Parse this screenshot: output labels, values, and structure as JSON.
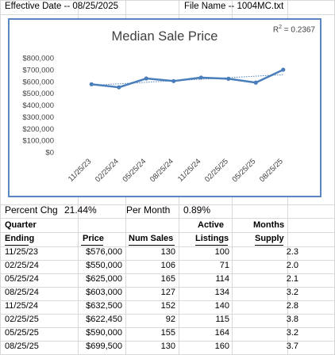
{
  "header": {
    "effective_date": "Effective Date -- 08/25/2025",
    "file_name": "File Name -- 1004MC.txt"
  },
  "chart_data": {
    "type": "line",
    "title": "Median Sale Price",
    "r2_label": "R",
    "r2_exp": "2",
    "r2_value": " = 0.2367",
    "categories": [
      "11/25/23",
      "02/25/24",
      "05/25/24",
      "08/25/24",
      "11/25/24",
      "02/25/25",
      "05/25/25",
      "08/25/25"
    ],
    "series": [
      {
        "values": [
          576000,
          550000,
          625000,
          603000,
          632500,
          622450,
          590000,
          699500
        ]
      }
    ],
    "trendline": true,
    "y_ticks": [
      "$800,000",
      "$700,000",
      "$600,000",
      "$500,000",
      "$400,000",
      "$300,000",
      "$200,000",
      "$100,000",
      "$0"
    ],
    "ylim": [
      0,
      800000
    ],
    "grid": false,
    "colors": {
      "line": "#4a7ebb",
      "trend": "#4a7ebb"
    }
  },
  "stats": {
    "percent_change_label": "Percent Chg",
    "percent_change_value": "21.44%",
    "per_month_label": "Per Month",
    "per_month_value": "0.89%"
  },
  "table": {
    "headers": {
      "quarter": "Quarter",
      "ending": "Ending",
      "price": "Price",
      "num_sales": "Num Sales",
      "active": "Active",
      "listings": "Listings",
      "months": "Months",
      "supply": "Supply"
    },
    "rows": [
      [
        "11/25/23",
        "$576,000",
        "130",
        "100",
        "2.3"
      ],
      [
        "02/25/24",
        "$550,000",
        "106",
        "71",
        "2.0"
      ],
      [
        "05/25/24",
        "$625,000",
        "165",
        "114",
        "2.1"
      ],
      [
        "08/25/24",
        "$603,000",
        "127",
        "134",
        "3.2"
      ],
      [
        "11/25/24",
        "$632,500",
        "152",
        "140",
        "2.8"
      ],
      [
        "02/25/25",
        "$622,450",
        "92",
        "115",
        "3.8"
      ],
      [
        "05/25/25",
        "$590,000",
        "155",
        "164",
        "3.2"
      ],
      [
        "08/25/25",
        "$699,500",
        "130",
        "160",
        "3.7"
      ]
    ]
  }
}
